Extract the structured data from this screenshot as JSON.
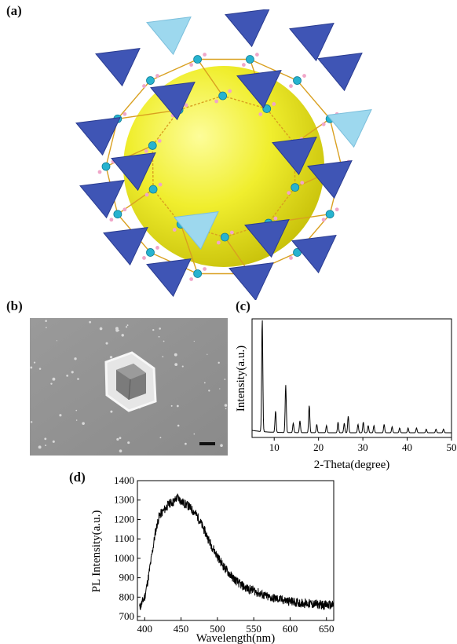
{
  "figure": {
    "labels": {
      "a": "(a)",
      "b": "(b)",
      "c": "(c)",
      "d": "(d)"
    }
  },
  "chart_data": [
    {
      "panel": "c",
      "type": "line",
      "xlabel": "2-Theta(degree)",
      "ylabel": "Intensity(a.u.)",
      "xlim": [
        5,
        50
      ],
      "ylim": [
        0,
        1
      ],
      "x_ticks": [
        10,
        20,
        30,
        40,
        50
      ],
      "y_ticks_shown": false,
      "peaks": [
        {
          "x": 7.3,
          "y": 0.95
        },
        {
          "x": 10.3,
          "y": 0.18
        },
        {
          "x": 12.6,
          "y": 0.4
        },
        {
          "x": 14.3,
          "y": 0.08
        },
        {
          "x": 15.8,
          "y": 0.1
        },
        {
          "x": 17.9,
          "y": 0.23
        },
        {
          "x": 19.6,
          "y": 0.07
        },
        {
          "x": 21.8,
          "y": 0.06
        },
        {
          "x": 24.4,
          "y": 0.09
        },
        {
          "x": 25.8,
          "y": 0.08
        },
        {
          "x": 26.7,
          "y": 0.14
        },
        {
          "x": 28.9,
          "y": 0.07
        },
        {
          "x": 30.1,
          "y": 0.09
        },
        {
          "x": 31.2,
          "y": 0.06
        },
        {
          "x": 32.5,
          "y": 0.06
        },
        {
          "x": 34.8,
          "y": 0.07
        },
        {
          "x": 36.6,
          "y": 0.05
        },
        {
          "x": 38.3,
          "y": 0.04
        },
        {
          "x": 40.2,
          "y": 0.04
        },
        {
          "x": 42.1,
          "y": 0.04
        },
        {
          "x": 44.3,
          "y": 0.03
        },
        {
          "x": 46.5,
          "y": 0.03
        },
        {
          "x": 48.2,
          "y": 0.03
        }
      ],
      "baseline": 0.04
    },
    {
      "panel": "d",
      "type": "line",
      "xlabel": "Wavelength(nm)",
      "ylabel": "PL Intensity(a.u.)",
      "xlim": [
        390,
        660
      ],
      "ylim": [
        680,
        1400
      ],
      "x_ticks": [
        400,
        450,
        500,
        550,
        600,
        650
      ],
      "y_ticks": [
        700,
        800,
        900,
        1000,
        1100,
        1200,
        1300,
        1400
      ],
      "x": [
        393,
        400,
        405,
        410,
        415,
        420,
        425,
        430,
        435,
        440,
        445,
        450,
        455,
        460,
        465,
        470,
        475,
        480,
        490,
        500,
        510,
        520,
        530,
        540,
        550,
        560,
        570,
        580,
        590,
        600,
        610,
        620,
        630,
        640,
        650,
        660
      ],
      "y": [
        745,
        800,
        900,
        1020,
        1140,
        1220,
        1240,
        1265,
        1285,
        1290,
        1315,
        1295,
        1280,
        1270,
        1250,
        1230,
        1200,
        1160,
        1080,
        1010,
        950,
        905,
        870,
        845,
        835,
        815,
        800,
        792,
        785,
        778,
        772,
        768,
        765,
        762,
        760,
        758
      ]
    }
  ]
}
